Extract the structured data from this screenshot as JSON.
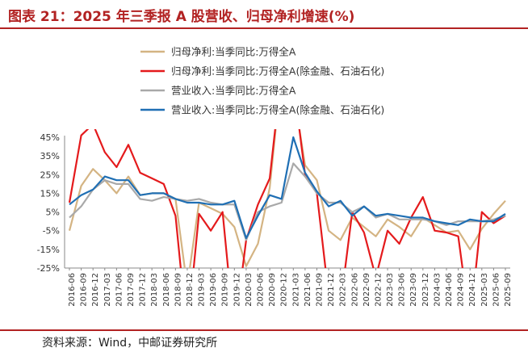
{
  "title": "图表 21：2025 年三季报 A 股营收、归母净利增速(%)",
  "source": "资料来源：Wind，中邮证券研究所",
  "chart_data": {
    "type": "line",
    "ylim": [
      -25,
      45
    ],
    "y_ticks": [
      "45%",
      "35%",
      "25%",
      "15%",
      "5%",
      "-5%",
      "-15%",
      "-25%"
    ],
    "y_tick_values": [
      45,
      35,
      25,
      15,
      5,
      -5,
      -15,
      -25
    ],
    "grid": false,
    "legend_position": "top",
    "x": [
      "2016-06",
      "2016-09",
      "2016-12",
      "2017-03",
      "2017-06",
      "2017-09",
      "2017-12",
      "2018-03",
      "2018-06",
      "2018-09",
      "2018-12",
      "2019-03",
      "2019-06",
      "2019-09",
      "2019-12",
      "2020-03",
      "2020-06",
      "2020-09",
      "2020-12",
      "2021-03",
      "2021-06",
      "2021-09",
      "2021-12",
      "2022-03",
      "2022-06",
      "2022-09",
      "2022-12",
      "2023-03",
      "2023-06",
      "2023-09",
      "2023-12",
      "2024-03",
      "2024-06",
      "2024-09",
      "2024-12",
      "2025-03",
      "2025-06",
      "2025-09"
    ],
    "x_tick_labels": [
      "2016-06",
      "2016-09",
      "2016-12",
      "2017-03",
      "2017-06",
      "2017-09",
      "2017-12",
      "2018-03",
      "2018-06",
      "2018-09",
      "2018-12",
      "2019-03",
      "2019-06",
      "2019-09",
      "2019-12",
      "2020-03",
      "2020-06",
      "2020-09",
      "2020-12",
      "2021-03",
      "2021-06",
      "2021-09",
      "2021-12",
      "2022-03",
      "2022-06",
      "2022-09",
      "2022-12",
      "2023-03",
      "2023-06",
      "2023-09",
      "2023-12",
      "2024-03",
      "2024-06",
      "2024-09",
      "2024-12",
      "2025-03",
      "2025-06",
      "2025-09"
    ],
    "series": [
      {
        "name": "归母净利:当季同比:万得全A",
        "color": "#d4b483",
        "values": [
          -5,
          19,
          28,
          22,
          15,
          24,
          14,
          15,
          15,
          12,
          -35,
          10,
          7,
          4,
          -3,
          -24,
          -12,
          18,
          80,
          70,
          30,
          22,
          -5,
          -10,
          2,
          -3,
          -8,
          1,
          -3,
          -8,
          2,
          -2,
          -6,
          -5,
          -15,
          -4,
          4,
          11
        ]
      },
      {
        "name": "归母净利:当季同比:万得全A(除金融、石油石化)",
        "color": "#e41a1c",
        "values": [
          10,
          46,
          52,
          37,
          29,
          41,
          26,
          23,
          20,
          3,
          -60,
          4,
          -5,
          5,
          -60,
          -10,
          9,
          23,
          80,
          75,
          25,
          15,
          -40,
          -45,
          5,
          -6,
          -30,
          -5,
          -12,
          2,
          13,
          -5,
          -6,
          -8,
          -55,
          5,
          -1,
          3
        ]
      },
      {
        "name": "营业收入:当季同比:万得全A",
        "color": "#a9a9a9",
        "values": [
          2,
          8,
          17,
          22,
          20,
          20,
          12,
          11,
          13,
          12,
          11,
          12,
          10,
          9,
          9,
          -10,
          5,
          8,
          10,
          31,
          24,
          15,
          10,
          10,
          5,
          8,
          2,
          4,
          1,
          1,
          1,
          0,
          -2,
          0,
          0,
          0,
          1,
          3
        ]
      },
      {
        "name": "营业收入:当季同比:万得全A(除金融、石油石化)",
        "color": "#1f6fb4",
        "values": [
          9,
          14,
          17,
          24,
          22,
          22,
          14,
          15,
          15,
          12,
          10,
          10,
          9,
          9,
          11,
          -9,
          3,
          14,
          12,
          45,
          26,
          16,
          8,
          11,
          3,
          8,
          3,
          4,
          3,
          2,
          2,
          0,
          -1,
          -2,
          1,
          0,
          0,
          4
        ]
      }
    ]
  }
}
